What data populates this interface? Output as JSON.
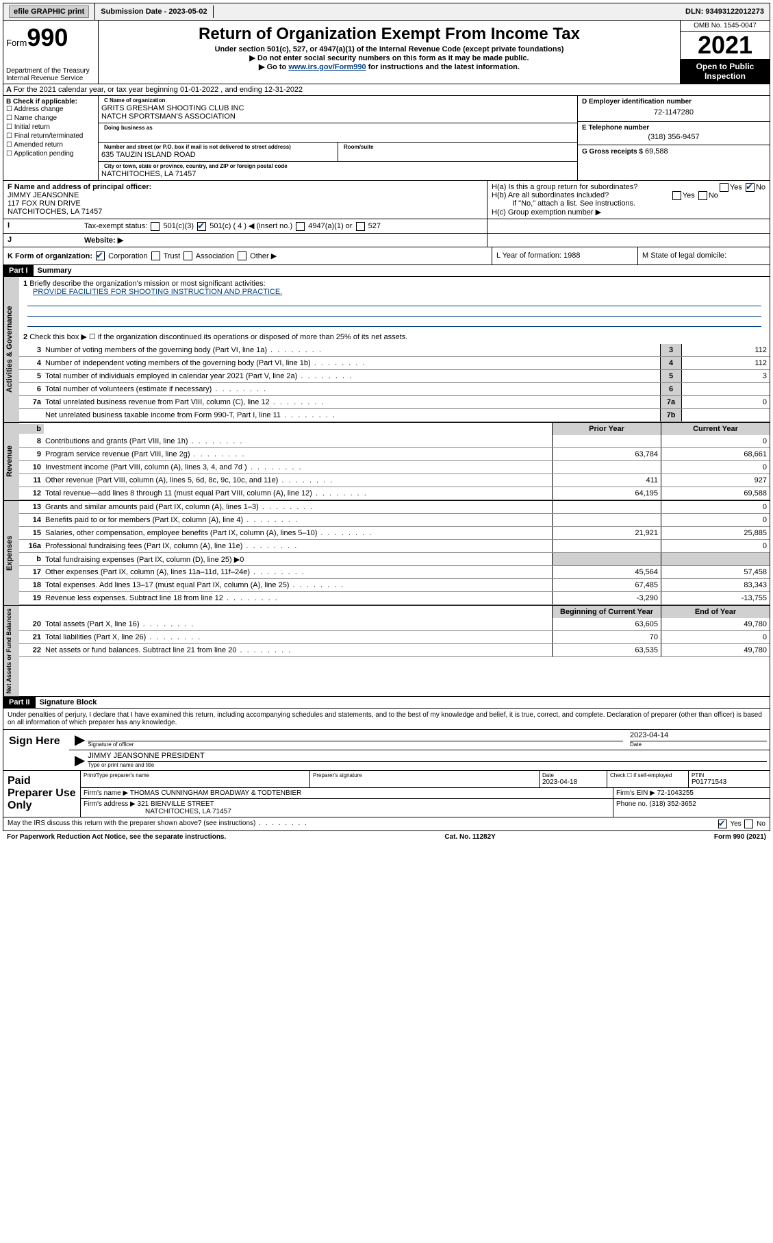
{
  "topbar": {
    "efile": "efile GRAPHIC print",
    "submission": "Submission Date - 2023-05-02",
    "dln": "DLN: 93493122012273"
  },
  "header": {
    "form": "Form",
    "form_num": "990",
    "title": "Return of Organization Exempt From Income Tax",
    "sub1": "Under section 501(c), 527, or 4947(a)(1) of the Internal Revenue Code (except private foundations)",
    "sub2": "▶ Do not enter social security numbers on this form as it may be made public.",
    "sub3_pre": "▶ Go to ",
    "sub3_link": "www.irs.gov/Form990",
    "sub3_post": " for instructions and the latest information.",
    "dept": "Department of the Treasury",
    "irs": "Internal Revenue Service",
    "omb": "OMB No. 1545-0047",
    "year": "2021",
    "inspect": "Open to Public Inspection"
  },
  "rowA": "For the 2021 calendar year, or tax year beginning 01-01-2022   , and ending 12-31-2022",
  "colB": {
    "hdr": "B Check if applicable:",
    "items": [
      "Address change",
      "Name change",
      "Initial return",
      "Final return/terminated",
      "Amended return",
      "Application pending"
    ]
  },
  "colC": {
    "name_lbl": "C Name of organization",
    "name1": "GRITS GRESHAM SHOOTING CLUB INC",
    "name2": "NATCH SPORTSMAN'S ASSOCIATION",
    "dba_lbl": "Doing business as",
    "addr_lbl": "Number and street (or P.O. box if mail is not delivered to street address)",
    "room_lbl": "Room/suite",
    "addr": "635 TAUZIN ISLAND ROAD",
    "city_lbl": "City or town, state or province, country, and ZIP or foreign postal code",
    "city": "NATCHITOCHES, LA  71457"
  },
  "colDE": {
    "d_lbl": "D Employer identification number",
    "ein": "72-1147280",
    "e_lbl": "E Telephone number",
    "phone": "(318) 356-9457",
    "g_lbl": "G Gross receipts $",
    "gross": "69,588"
  },
  "rowF": {
    "f_lbl": "F Name and address of principal officer:",
    "name": "JIMMY JEANSONNE",
    "addr1": "117 FOX RUN DRIVE",
    "addr2": "NATCHITOCHES, LA  71457",
    "ha": "H(a)  Is this a group return for subordinates?",
    "hb": "H(b)  Are all subordinates included?",
    "hb_note": "If \"No,\" attach a list. See instructions.",
    "hc": "H(c)  Group exemption number ▶",
    "yes": "Yes",
    "no": "No"
  },
  "rowI": {
    "lbl": "Tax-exempt status:",
    "c3": "501(c)(3)",
    "c": "501(c) ( 4 ) ◀ (insert no.)",
    "a1": "4947(a)(1) or",
    "s527": "527"
  },
  "rowJ": {
    "lbl": "Website: ▶"
  },
  "rowK": {
    "k": "K Form of organization:",
    "opts": [
      "Corporation",
      "Trust",
      "Association",
      "Other ▶"
    ],
    "l": "L Year of formation: 1988",
    "m": "M State of legal domicile:"
  },
  "part1": {
    "hdr": "Part I",
    "title": "Summary",
    "q1a": "Briefly describe the organization's mission or most significant activities:",
    "q1b": "PROVIDE FACILITIES FOR SHOOTING INSTRUCTION AND PRACTICE.",
    "q2": "Check this box ▶ ☐  if the organization discontinued its operations or disposed of more than 25% of its net assets.",
    "lines_gov": [
      {
        "n": "3",
        "t": "Number of voting members of the governing body (Part VI, line 1a)",
        "b": "3",
        "v": "112"
      },
      {
        "n": "4",
        "t": "Number of independent voting members of the governing body (Part VI, line 1b)",
        "b": "4",
        "v": "112"
      },
      {
        "n": "5",
        "t": "Total number of individuals employed in calendar year 2021 (Part V, line 2a)",
        "b": "5",
        "v": "3"
      },
      {
        "n": "6",
        "t": "Total number of volunteers (estimate if necessary)",
        "b": "6",
        "v": ""
      },
      {
        "n": "7a",
        "t": "Total unrelated business revenue from Part VIII, column (C), line 12",
        "b": "7a",
        "v": "0"
      },
      {
        "n": "",
        "t": "Net unrelated business taxable income from Form 990-T, Part I, line 11",
        "b": "7b",
        "v": ""
      }
    ],
    "col_prior": "Prior Year",
    "col_curr": "Current Year",
    "rev": [
      {
        "n": "8",
        "t": "Contributions and grants (Part VIII, line 1h)",
        "p": "",
        "c": "0"
      },
      {
        "n": "9",
        "t": "Program service revenue (Part VIII, line 2g)",
        "p": "63,784",
        "c": "68,661"
      },
      {
        "n": "10",
        "t": "Investment income (Part VIII, column (A), lines 3, 4, and 7d )",
        "p": "",
        "c": "0"
      },
      {
        "n": "11",
        "t": "Other revenue (Part VIII, column (A), lines 5, 6d, 8c, 9c, 10c, and 11e)",
        "p": "411",
        "c": "927"
      },
      {
        "n": "12",
        "t": "Total revenue—add lines 8 through 11 (must equal Part VIII, column (A), line 12)",
        "p": "64,195",
        "c": "69,588"
      }
    ],
    "exp": [
      {
        "n": "13",
        "t": "Grants and similar amounts paid (Part IX, column (A), lines 1–3)",
        "p": "",
        "c": "0"
      },
      {
        "n": "14",
        "t": "Benefits paid to or for members (Part IX, column (A), line 4)",
        "p": "",
        "c": "0"
      },
      {
        "n": "15",
        "t": "Salaries, other compensation, employee benefits (Part IX, column (A), lines 5–10)",
        "p": "21,921",
        "c": "25,885"
      },
      {
        "n": "16a",
        "t": "Professional fundraising fees (Part IX, column (A), line 11e)",
        "p": "",
        "c": "0"
      },
      {
        "n": "b",
        "t": "Total fundraising expenses (Part IX, column (D), line 25) ▶0",
        "p": "—",
        "c": "—"
      },
      {
        "n": "17",
        "t": "Other expenses (Part IX, column (A), lines 11a–11d, 11f–24e)",
        "p": "45,564",
        "c": "57,458"
      },
      {
        "n": "18",
        "t": "Total expenses. Add lines 13–17 (must equal Part IX, column (A), line 25)",
        "p": "67,485",
        "c": "83,343"
      },
      {
        "n": "19",
        "t": "Revenue less expenses. Subtract line 18 from line 12",
        "p": "-3,290",
        "c": "-13,755"
      }
    ],
    "col_begin": "Beginning of Current Year",
    "col_end": "End of Year",
    "net": [
      {
        "n": "20",
        "t": "Total assets (Part X, line 16)",
        "p": "63,605",
        "c": "49,780"
      },
      {
        "n": "21",
        "t": "Total liabilities (Part X, line 26)",
        "p": "70",
        "c": "0"
      },
      {
        "n": "22",
        "t": "Net assets or fund balances. Subtract line 21 from line 20",
        "p": "63,535",
        "c": "49,780"
      }
    ]
  },
  "vtabs": {
    "gov": "Activities & Governance",
    "rev": "Revenue",
    "exp": "Expenses",
    "net": "Net Assets or Fund Balances"
  },
  "part2": {
    "hdr": "Part II",
    "title": "Signature Block",
    "decl": "Under penalties of perjury, I declare that I have examined this return, including accompanying schedules and statements, and to the best of my knowledge and belief, it is true, correct, and complete. Declaration of preparer (other than officer) is based on all information of which preparer has any knowledge.",
    "sign_here": "Sign Here",
    "sig_officer": "Signature of officer",
    "sig_date": "2023-04-14",
    "date_lbl": "Date",
    "officer_name": "JIMMY JEANSONNE  PRESIDENT",
    "type_lbl": "Type or print name and title",
    "paid": "Paid Preparer Use Only",
    "pt_name_lbl": "Print/Type preparer's name",
    "pt_sig_lbl": "Preparer's signature",
    "pt_date_lbl": "Date",
    "pt_date": "2023-04-18",
    "pt_check": "Check ☐ if self-employed",
    "ptin_lbl": "PTIN",
    "ptin": "P01771543",
    "firm_name_lbl": "Firm's name    ▶",
    "firm_name": "THOMAS CUNNINGHAM BROADWAY & TODTENBIER",
    "firm_ein_lbl": "Firm's EIN ▶",
    "firm_ein": "72-1043255",
    "firm_addr_lbl": "Firm's address ▶",
    "firm_addr": "321 BIENVILLE STREET",
    "firm_city": "NATCHITOCHES, LA  71457",
    "firm_phone_lbl": "Phone no.",
    "firm_phone": "(318) 352-3652"
  },
  "footer": {
    "q": "May the IRS discuss this return with the preparer shown above? (see instructions)",
    "yes": "Yes",
    "no": "No",
    "pra": "For Paperwork Reduction Act Notice, see the separate instructions.",
    "cat": "Cat. No. 11282Y",
    "form": "Form 990 (2021)"
  }
}
